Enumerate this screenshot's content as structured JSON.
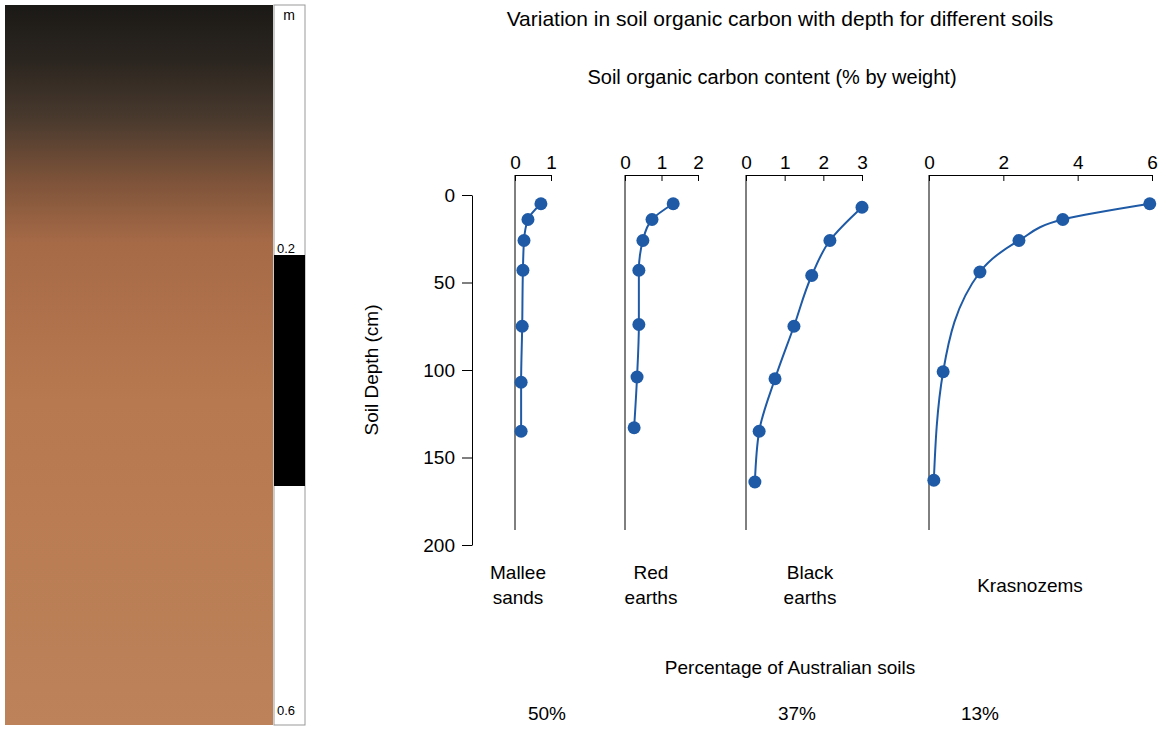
{
  "title": "Variation in soil organic carbon with depth for different soils",
  "subtitle": "Soil organic carbon content (% by weight)",
  "photo": {
    "unit": "m",
    "ylim": [
      0,
      0.6
    ],
    "ticks": [
      0.2,
      0.6
    ]
  },
  "footer": {
    "title": "Percentage of Australian soils",
    "labels": [
      "50%",
      "37%",
      "13%"
    ]
  },
  "chart_data": [
    {
      "type": "line",
      "title": "Mallee sands",
      "ylabel": "Soil Depth (cm)",
      "x": [
        0.72,
        0.36,
        0.25,
        0.22,
        0.2,
        0.17,
        0.17
      ],
      "values": [
        5,
        14,
        26,
        43,
        75,
        107,
        135
      ],
      "xlim": [
        0,
        1
      ],
      "xticks": [
        0,
        1
      ],
      "ylim": [
        0,
        200
      ],
      "yticks": [
        0,
        50,
        100,
        150,
        200
      ],
      "color": "#1f5aa6",
      "marker": "circle",
      "line_style": "solid"
    },
    {
      "type": "line",
      "title": "Red earths",
      "x": [
        1.32,
        0.74,
        0.49,
        0.38,
        0.38,
        0.33,
        0.25
      ],
      "values": [
        5,
        14,
        26,
        43,
        74,
        104,
        133
      ],
      "xlim": [
        0,
        2
      ],
      "xticks": [
        0,
        1,
        2
      ],
      "ylim": [
        0,
        200
      ],
      "color": "#1f5aa6",
      "marker": "circle",
      "line_style": "solid"
    },
    {
      "type": "line",
      "title": "Black earths",
      "x": [
        3.0,
        2.17,
        1.7,
        1.24,
        0.75,
        0.34,
        0.23
      ],
      "values": [
        7,
        26,
        46,
        75,
        105,
        135,
        164
      ],
      "xlim": [
        0,
        3
      ],
      "xticks": [
        0,
        1,
        2,
        3
      ],
      "ylim": [
        0,
        200
      ],
      "color": "#1f5aa6",
      "marker": "circle",
      "line_style": "solid"
    },
    {
      "type": "line",
      "title": "Krasnozems",
      "x": [
        5.94,
        3.6,
        2.42,
        1.37,
        0.38,
        0.13
      ],
      "values": [
        5,
        14,
        26,
        44,
        101,
        163
      ],
      "xlim": [
        0,
        6
      ],
      "xticks": [
        0,
        2,
        4,
        6
      ],
      "ylim": [
        0,
        200
      ],
      "color": "#1f5aa6",
      "marker": "circle",
      "line_style": "solid"
    }
  ]
}
